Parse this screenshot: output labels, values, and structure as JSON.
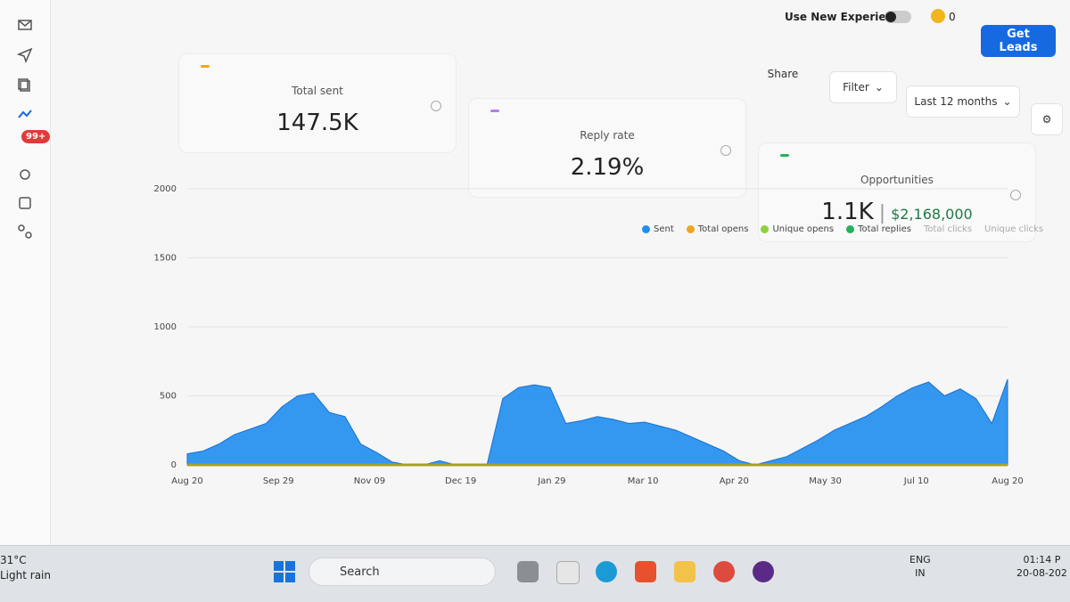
{
  "topbar": {
    "toggle_label": "Use New Experience",
    "credits": "0",
    "cta": "Get Leads"
  },
  "sidebar": {
    "badge": "99+"
  },
  "toolbar": {
    "share": "Share",
    "filter": "Filter",
    "range": "Last 12 months"
  },
  "cards": [
    {
      "label": "Total sent",
      "value": "147.5K"
    },
    {
      "label": "Reply rate",
      "value": "2.19%"
    },
    {
      "label": "Opportunities",
      "value": "1.1K",
      "amount": "$2,168,000"
    }
  ],
  "chart": {
    "type": "area",
    "xticks": [
      "Aug 20",
      "Sep 29",
      "Nov 09",
      "Dec 19",
      "Jan 29",
      "Mar 10",
      "Apr 20",
      "May 30",
      "Jul 10",
      "Aug 20"
    ],
    "ylim": [
      0,
      2000
    ],
    "yticks": [
      0,
      500,
      1000,
      1500,
      2000
    ],
    "series": [
      {
        "name": "Sent",
        "color": "#1f8ef1",
        "values": [
          80,
          100,
          150,
          220,
          260,
          300,
          420,
          500,
          520,
          380,
          350,
          150,
          90,
          20,
          0,
          0,
          30,
          0,
          0,
          0,
          480,
          560,
          580,
          560,
          300,
          320,
          350,
          330,
          300,
          310,
          280,
          250,
          200,
          150,
          100,
          30,
          0,
          30,
          60,
          120,
          180,
          250,
          300,
          350,
          420,
          500,
          560,
          600,
          500,
          550,
          480,
          300,
          620
        ]
      }
    ],
    "legend": [
      {
        "name": "Sent",
        "color": "#1f8ef1"
      },
      {
        "name": "Total opens",
        "color": "#f2a51c"
      },
      {
        "name": "Unique opens",
        "color": "#8fd13a"
      },
      {
        "name": "Total replies",
        "color": "#22b35a"
      },
      {
        "name": "Total clicks",
        "color": null
      },
      {
        "name": "Unique clicks",
        "color": null
      }
    ]
  },
  "taskbar": {
    "temperature": "31°C",
    "weather": "Light rain",
    "search": "Search",
    "lang": "ENG",
    "region": "IN",
    "time": "01:14 P",
    "date": "20-08-202"
  }
}
